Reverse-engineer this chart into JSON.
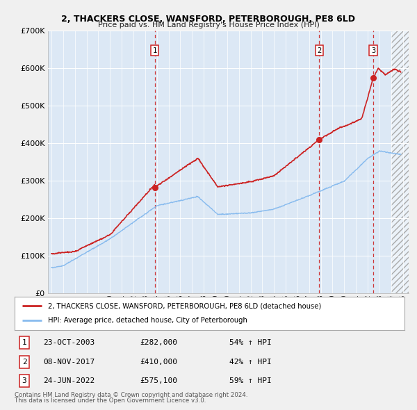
{
  "title": "2, THACKERS CLOSE, WANSFORD, PETERBOROUGH, PE8 6LD",
  "subtitle": "Price paid vs. HM Land Registry's House Price Index (HPI)",
  "fig_bg_color": "#f0f0f0",
  "plot_bg_color": "#dce8f5",
  "hpi_line_color": "#88bbee",
  "house_line_color": "#cc2222",
  "ylim": [
    0,
    700000
  ],
  "yticks": [
    0,
    100000,
    200000,
    300000,
    400000,
    500000,
    600000,
    700000
  ],
  "ytick_labels": [
    "£0",
    "£100K",
    "£200K",
    "£300K",
    "£400K",
    "£500K",
    "£600K",
    "£700K"
  ],
  "xlim_start": 1994.7,
  "xlim_end": 2025.5,
  "transactions": [
    {
      "num": 1,
      "date": "23-OCT-2003",
      "price": 282000,
      "year": 2003.81,
      "pct": "54%",
      "dir": "↑"
    },
    {
      "num": 2,
      "date": "08-NOV-2017",
      "price": 410000,
      "year": 2017.86,
      "pct": "42%",
      "dir": "↑"
    },
    {
      "num": 3,
      "date": "24-JUN-2022",
      "price": 575100,
      "year": 2022.48,
      "pct": "59%",
      "dir": "↑"
    }
  ],
  "legend_house_label": "2, THACKERS CLOSE, WANSFORD, PETERBOROUGH, PE8 6LD (detached house)",
  "legend_hpi_label": "HPI: Average price, detached house, City of Peterborough",
  "footnote1": "Contains HM Land Registry data © Crown copyright and database right 2024.",
  "footnote2": "This data is licensed under the Open Government Licence v3.0."
}
